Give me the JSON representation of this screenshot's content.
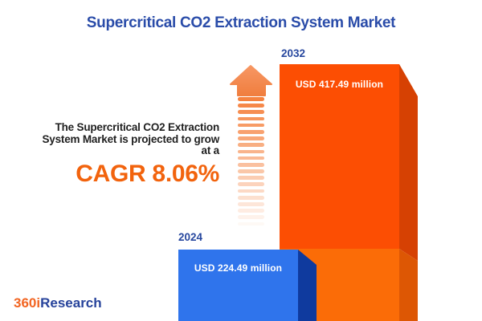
{
  "title": "Supercritical CO2 Extraction System Market",
  "description": {
    "lines": [
      "The Supercritical CO2 Extraction",
      "System Market is projected to grow",
      "at a"
    ],
    "cagr": "CAGR 8.06%"
  },
  "bars": [
    {
      "year": "2024",
      "value_label": "USD 224.49 million"
    },
    {
      "year": "2032",
      "value_label": "USD 417.49 million"
    }
  ],
  "logo": {
    "part1": "360i",
    "part2": "Research"
  },
  "icons": {
    "growth_arrow": "up-arrow-with-fading-dashed-tail"
  },
  "colors": {
    "title_blue": "#2A4CA9",
    "year_label_blue": "#27479E",
    "description_text": "#1F1F1F",
    "cagr_orange": "#F2630D",
    "bar2032_front": "#FC4E03",
    "bar2032_side": "#D64103",
    "base_front": "#FB6C07",
    "base_side": "#DD5704",
    "bar2024_front": "#2F74EC",
    "bar2024_side": "#0F3A9E",
    "arrow_stripe": "#F5823F",
    "arrow_head_top": "#F79763",
    "arrow_head_bottom": "#F07E3F",
    "value_text": "#FFFFFF",
    "logo_orange": "#F26522",
    "logo_blue": "#27439B"
  },
  "chart_data": {
    "type": "bar",
    "title": "Supercritical CO2 Extraction System Market",
    "categories": [
      "2024",
      "2032"
    ],
    "values": [
      224.49,
      417.49
    ],
    "unit": "USD million",
    "value_labels": [
      "USD 224.49 million",
      "USD 417.49 million"
    ],
    "cagr_percent": 8.06,
    "annotation": "The Supercritical CO2 Extraction System Market is projected to grow at a CAGR 8.06%",
    "bar_colors": {
      "2024": "#2F74EC",
      "2032": "#FC4E03"
    },
    "style": "3d-boxes",
    "grid": false,
    "axes": "none",
    "legend": "none"
  }
}
